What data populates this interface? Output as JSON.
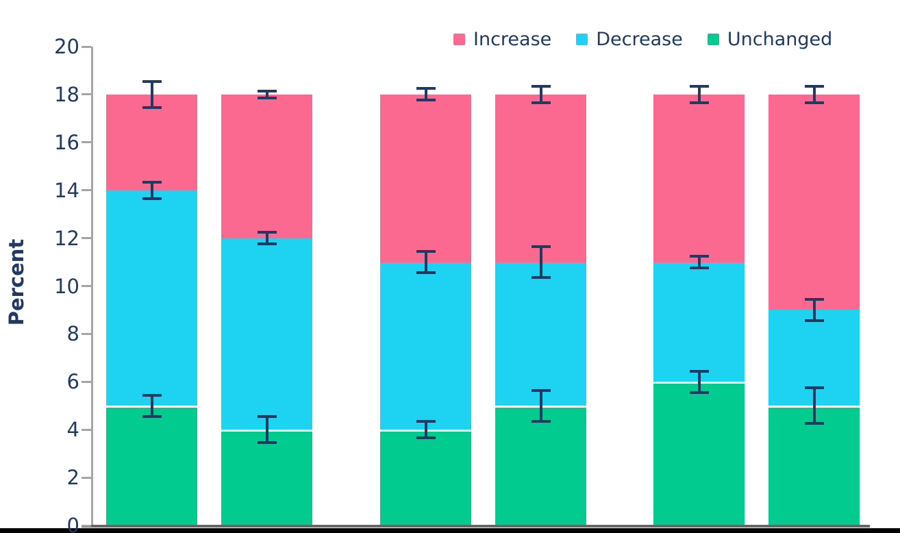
{
  "chart_data": {
    "type": "bar",
    "subtype": "stacked_bar_with_error_bars",
    "title": "",
    "xlabel": "",
    "ylabel": "Percent",
    "ylim": [
      0,
      20
    ],
    "yticks": [
      0,
      2,
      4,
      6,
      8,
      10,
      12,
      14,
      16,
      18,
      20
    ],
    "grid": false,
    "legend_position": "top-right",
    "legend": [
      "Increase",
      "Decrease",
      "Unchanged"
    ],
    "series_order_bottom_to_top": [
      "Unchanged",
      "Decrease",
      "Increase"
    ],
    "colors": {
      "Increase": "#fc6990",
      "Decrease": "#1ed2f1",
      "Unchanged": "#02cb90",
      "error_bar": "#203a61",
      "text": "#203a61",
      "y_axis": "#a5a5a5",
      "x_axis": "#666666"
    },
    "bar_total": 18,
    "groups": [
      {
        "bars": [
          {
            "values": {
              "Unchanged": 5,
              "Decrease": 9,
              "Increase": 4
            },
            "errors": [
              {
                "at_value": 5,
                "margin": 0.5
              },
              {
                "at_value": 14,
                "margin": 0.4
              },
              {
                "at_value": 18,
                "margin": 0.6
              }
            ]
          },
          {
            "values": {
              "Unchanged": 4,
              "Decrease": 8,
              "Increase": 6
            },
            "errors": [
              {
                "at_value": 4,
                "margin": 0.6
              },
              {
                "at_value": 12,
                "margin": 0.3
              },
              {
                "at_value": 18,
                "margin": 0.2
              }
            ]
          }
        ]
      },
      {
        "bars": [
          {
            "values": {
              "Unchanged": 4,
              "Decrease": 7,
              "Increase": 7
            },
            "errors": [
              {
                "at_value": 4,
                "margin": 0.4
              },
              {
                "at_value": 11,
                "margin": 0.5
              },
              {
                "at_value": 18,
                "margin": 0.3
              }
            ]
          },
          {
            "values": {
              "Unchanged": 5,
              "Decrease": 6,
              "Increase": 7
            },
            "errors": [
              {
                "at_value": 5,
                "margin": 0.7
              },
              {
                "at_value": 11,
                "margin": 0.7
              },
              {
                "at_value": 18,
                "margin": 0.4
              }
            ]
          }
        ]
      },
      {
        "bars": [
          {
            "values": {
              "Unchanged": 6,
              "Decrease": 5,
              "Increase": 7
            },
            "errors": [
              {
                "at_value": 6,
                "margin": 0.5
              },
              {
                "at_value": 11,
                "margin": 0.3
              },
              {
                "at_value": 18,
                "margin": 0.4
              }
            ]
          },
          {
            "values": {
              "Unchanged": 5,
              "Decrease": 4,
              "Increase": 9
            },
            "errors": [
              {
                "at_value": 5,
                "margin": 0.8
              },
              {
                "at_value": 9,
                "margin": 0.5
              },
              {
                "at_value": 18,
                "margin": 0.4
              }
            ]
          }
        ]
      }
    ]
  }
}
